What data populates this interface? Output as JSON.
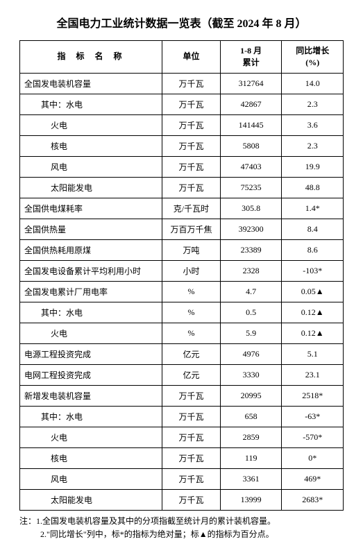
{
  "title": "全国电力工业统计数据一览表（截至 2024 年 8 月）",
  "headers": {
    "name": "指 标  名 称",
    "unit": "单位",
    "val1": "1-8 月\n累计",
    "val2": "同比增长\n(%)"
  },
  "rows": [
    {
      "name": "全国发电装机容量",
      "indent": 0,
      "unit": "万千瓦",
      "v1": "312764",
      "v2": "14.0"
    },
    {
      "name": "其中：水电",
      "indent": 1,
      "unit": "万千瓦",
      "v1": "42867",
      "v2": "2.3"
    },
    {
      "name": "火电",
      "indent": 2,
      "unit": "万千瓦",
      "v1": "141445",
      "v2": "3.6"
    },
    {
      "name": "核电",
      "indent": 2,
      "unit": "万千瓦",
      "v1": "5808",
      "v2": "2.3"
    },
    {
      "name": "风电",
      "indent": 2,
      "unit": "万千瓦",
      "v1": "47403",
      "v2": "19.9"
    },
    {
      "name": "太阳能发电",
      "indent": 2,
      "unit": "万千瓦",
      "v1": "75235",
      "v2": "48.8"
    },
    {
      "name": "全国供电煤耗率",
      "indent": 0,
      "unit": "克/千瓦时",
      "v1": "305.8",
      "v2": "1.4*"
    },
    {
      "name": "全国供热量",
      "indent": 0,
      "unit": "万百万千焦",
      "v1": "392300",
      "v2": "8.4"
    },
    {
      "name": "全国供热耗用原煤",
      "indent": 0,
      "unit": "万吨",
      "v1": "23389",
      "v2": "8.6"
    },
    {
      "name": "全国发电设备累计平均利用小时",
      "indent": 0,
      "unit": "小时",
      "v1": "2328",
      "v2": "-103*"
    },
    {
      "name": "全国发电累计厂用电率",
      "indent": 0,
      "unit": "%",
      "v1": "4.7",
      "v2": "0.05▲"
    },
    {
      "name": "其中：水电",
      "indent": 1,
      "unit": "%",
      "v1": "0.5",
      "v2": "0.12▲"
    },
    {
      "name": "火电",
      "indent": 2,
      "unit": "%",
      "v1": "5.9",
      "v2": "0.12▲"
    },
    {
      "name": "电源工程投资完成",
      "indent": 0,
      "unit": "亿元",
      "v1": "4976",
      "v2": "5.1"
    },
    {
      "name": "电网工程投资完成",
      "indent": 0,
      "unit": "亿元",
      "v1": "3330",
      "v2": "23.1"
    },
    {
      "name": "新增发电装机容量",
      "indent": 0,
      "unit": "万千瓦",
      "v1": "20995",
      "v2": "2518*"
    },
    {
      "name": "其中：水电",
      "indent": 1,
      "unit": "万千瓦",
      "v1": "658",
      "v2": "-63*"
    },
    {
      "name": "火电",
      "indent": 2,
      "unit": "万千瓦",
      "v1": "2859",
      "v2": "-570*"
    },
    {
      "name": "核电",
      "indent": 2,
      "unit": "万千瓦",
      "v1": "119",
      "v2": "0*"
    },
    {
      "name": "风电",
      "indent": 2,
      "unit": "万千瓦",
      "v1": "3361",
      "v2": "469*"
    },
    {
      "name": "太阳能发电",
      "indent": 2,
      "unit": "万千瓦",
      "v1": "13999",
      "v2": "2683*"
    }
  ],
  "footnotes": {
    "prefix": "注：",
    "lines": [
      "1.全国发电装机容量及其中的分项指截至统计月的累计装机容量。",
      "2.\"同比增长\"列中，标*的指标为绝对量；标▲的指标为百分点。"
    ]
  },
  "styling": {
    "background_color": "#ffffff",
    "border_color": "#000000",
    "text_color": "#000000",
    "title_fontsize": 16,
    "body_fontsize": 12,
    "font_family": "SimSun"
  }
}
